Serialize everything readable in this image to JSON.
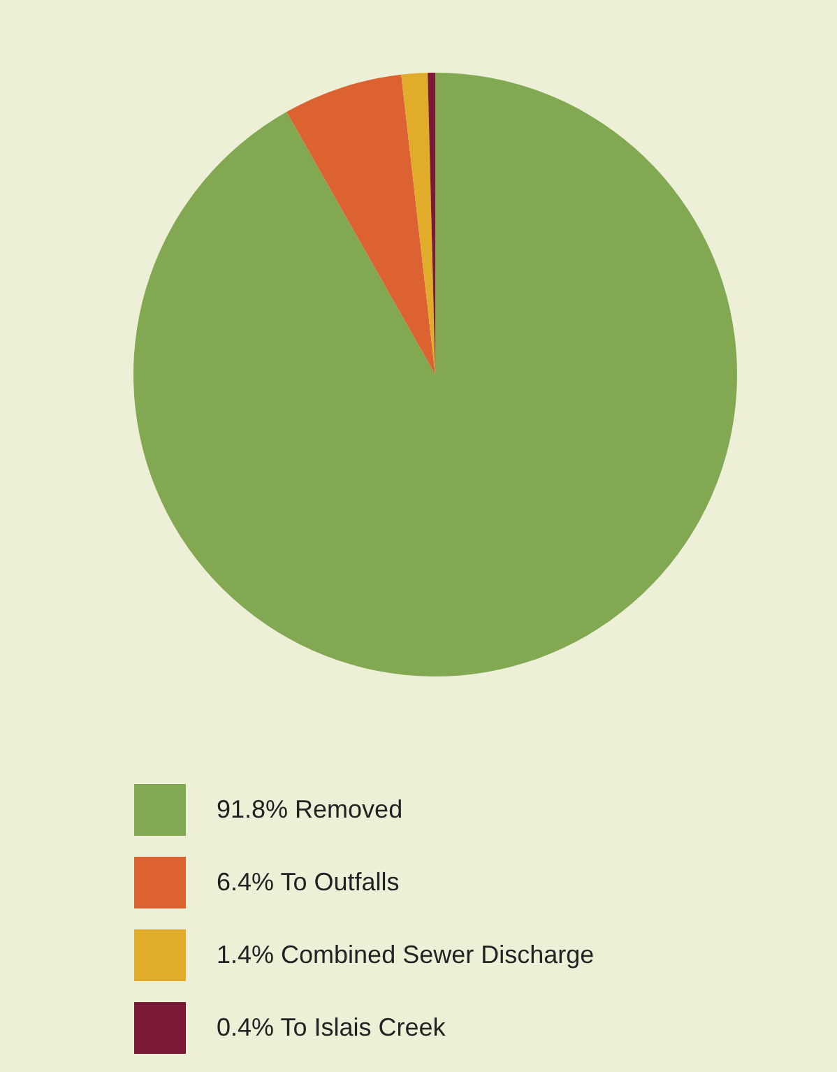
{
  "chart_data": {
    "type": "pie",
    "categories": [
      "Removed",
      "To Outfalls",
      "Combined Sewer Discharge",
      "To Islais Creek"
    ],
    "values": [
      91.8,
      6.4,
      1.4,
      0.4
    ],
    "value_labels": [
      "91.8%",
      "6.4%",
      "1.4%",
      "0.4%"
    ],
    "colors": [
      "#82a852",
      "#dc6232",
      "#e0ac2a",
      "#7a1a36"
    ],
    "legend": "bottom"
  }
}
